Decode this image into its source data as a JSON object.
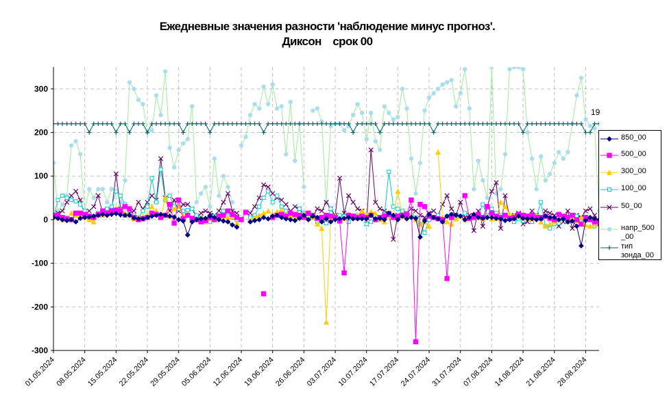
{
  "title_line1": "Ежедневные значения разности 'наблюдение минус прогноз'.",
  "title_line2": "Диксон    срок 00",
  "chart_data": {
    "type": "line",
    "title": "Ежедневные значения разности 'наблюдение минус прогноз'. Диксон срок 00",
    "xlabel": "",
    "ylabel": "",
    "ylim": [
      -300,
      350
    ],
    "yticks": [
      -300,
      -200,
      -100,
      0,
      100,
      200,
      300
    ],
    "x_start": "01.05.2024",
    "x_end": "31.08.2024",
    "xtick_labels": [
      "01.05.2024",
      "08.05.2024",
      "15.05.2024",
      "22.05.2024",
      "29.05.2024",
      "05.06.2024",
      "12.06.2024",
      "19.06.2024",
      "26.06.2024",
      "03.07.2024",
      "10.07.2024",
      "17.07.2024",
      "24.07.2024",
      "31.07.2024",
      "07.08.2024",
      "14.08.2024",
      "21.08.2024",
      "28.08.2024"
    ],
    "grid": true,
    "legend_position": "right",
    "annotation": "19",
    "series": [
      {
        "name": "850_00",
        "color": "#000080",
        "marker": "diamond",
        "values": [
          5,
          3,
          0,
          -2,
          0,
          -5,
          3,
          5,
          6,
          8,
          10,
          12,
          10,
          12,
          14,
          11,
          10,
          10,
          4,
          2,
          2,
          5,
          8,
          10,
          12,
          10,
          8,
          6,
          0,
          -3,
          -35,
          -5,
          0,
          2,
          3,
          8,
          5,
          0,
          -3,
          -5,
          -12,
          -17,
          null,
          null,
          -5,
          -2,
          0,
          5,
          2,
          8,
          10,
          5,
          2,
          0,
          -2,
          3,
          10,
          0,
          8,
          5,
          -5,
          2,
          -5,
          0,
          2,
          3,
          5,
          2,
          2,
          2,
          2,
          10,
          2,
          3,
          0,
          15,
          10,
          0,
          8,
          2,
          5,
          3,
          -40,
          -3,
          12,
          5,
          2,
          -5,
          8,
          12,
          10,
          8,
          0,
          5,
          12,
          5,
          3,
          5,
          5,
          3,
          2,
          -2,
          0,
          2,
          8,
          3,
          2,
          2,
          0,
          2,
          8,
          5,
          5,
          0,
          2,
          -5,
          -3,
          -15,
          -60,
          -2,
          5,
          2,
          0,
          0,
          5,
          2,
          0,
          2
        ]
      },
      {
        "name": "500_00",
        "color": "#ff00ff",
        "marker": "square",
        "values": [
          10,
          10,
          5,
          2,
          0,
          15,
          15,
          12,
          8,
          5,
          12,
          20,
          15,
          20,
          22,
          20,
          30,
          25,
          5,
          0,
          2,
          5,
          15,
          12,
          5,
          10,
          35,
          -8,
          45,
          2,
          10,
          3,
          0,
          -5,
          -2,
          5,
          0,
          8,
          10,
          20,
          12,
          5,
          0,
          17,
          null,
          null,
          null,
          -170,
          null,
          5,
          10,
          12,
          8,
          15,
          12,
          10,
          5,
          15,
          10,
          3,
          5,
          10,
          8,
          5,
          -3,
          -122,
          10,
          8,
          5,
          8,
          5,
          10,
          0,
          5,
          8,
          12,
          5,
          8,
          10,
          12,
          45,
          -280,
          35,
          30,
          8,
          5,
          2,
          0,
          -135,
          5,
          null,
          null,
          55,
          3,
          5,
          12,
          5,
          30,
          15,
          8,
          5,
          10,
          3,
          5,
          12,
          10,
          8,
          10,
          5,
          5,
          8,
          3,
          0,
          12,
          8,
          5,
          10,
          0,
          -10,
          5,
          0,
          -5,
          -5,
          5,
          -8,
          -10,
          -5,
          5,
          5,
          8
        ]
      },
      {
        "name": "300_00",
        "color": "#ffcc00",
        "marker": "triangle",
        "values": [
          5,
          5,
          0,
          5,
          15,
          10,
          8,
          5,
          0,
          -5,
          10,
          12,
          18,
          20,
          25,
          22,
          15,
          10,
          2,
          5,
          8,
          10,
          30,
          20,
          5,
          50,
          8,
          25,
          30,
          10,
          12,
          0,
          2,
          5,
          -5,
          3,
          5,
          10,
          8,
          5,
          8,
          -8,
          null,
          null,
          -2,
          5,
          10,
          15,
          20,
          12,
          18,
          22,
          12,
          10,
          5,
          8,
          12,
          3,
          5,
          -10,
          -20,
          -235,
          2,
          8,
          0,
          3,
          12,
          5,
          8,
          20,
          12,
          18,
          15,
          0,
          -5,
          8,
          10,
          65,
          8,
          5,
          10,
          0,
          -10,
          -5,
          -15,
          null,
          155,
          5,
          -5,
          -10,
          2,
          8,
          0,
          3,
          12,
          5,
          2,
          8,
          2,
          3,
          40,
          30,
          12,
          10,
          8,
          5,
          3,
          2,
          10,
          -5,
          -15,
          -10,
          -5,
          0,
          5,
          2,
          8,
          -2,
          5,
          -12,
          -15,
          -10,
          -5,
          5,
          -5,
          2
        ]
      },
      {
        "name": "100_00",
        "color": "#00cccc",
        "marker": "square_open",
        "values": [
          5,
          45,
          55,
          50,
          45,
          42,
          35,
          20,
          5,
          8,
          15,
          10,
          25,
          30,
          65,
          55,
          35,
          22,
          10,
          5,
          20,
          30,
          95,
          40,
          115,
          45,
          55,
          30,
          25,
          20,
          22,
          25,
          10,
          5,
          0,
          -5,
          8,
          5,
          20,
          15,
          5,
          0,
          null,
          null,
          5,
          10,
          30,
          50,
          65,
          40,
          55,
          30,
          20,
          10,
          5,
          25,
          15,
          5,
          10,
          -5,
          -2,
          -8,
          25,
          5,
          10,
          8,
          -5,
          5,
          10,
          15,
          -10,
          -5,
          2,
          0,
          10,
          110,
          30,
          25,
          20,
          15,
          10,
          5,
          -10,
          -30,
          0,
          5,
          10,
          -5,
          8,
          12,
          5,
          8,
          15,
          3,
          5,
          8,
          35,
          10,
          25,
          15,
          10,
          5,
          8,
          -5,
          2,
          -3,
          5,
          -5,
          8,
          40,
          -15,
          -20,
          -10,
          -8,
          2,
          -5,
          10,
          8,
          -5,
          5,
          2,
          -15,
          -3,
          5
        ]
      },
      {
        "name": "50_00",
        "color": "#660066",
        "marker": "x",
        "values": [
          10,
          15,
          20,
          40,
          55,
          65,
          45,
          10,
          20,
          30,
          55,
          15,
          22,
          20,
          105,
          25,
          10,
          15,
          20,
          40,
          25,
          40,
          55,
          45,
          140,
          50,
          20,
          45,
          20,
          35,
          35,
          25,
          5,
          15,
          20,
          15,
          10,
          20,
          40,
          60,
          20,
          15,
          null,
          null,
          15,
          30,
          50,
          80,
          75,
          60,
          50,
          45,
          35,
          20,
          30,
          25,
          10,
          15,
          8,
          25,
          20,
          40,
          25,
          10,
          95,
          15,
          55,
          40,
          25,
          20,
          -10,
          160,
          40,
          25,
          20,
          15,
          -45,
          10,
          8,
          15,
          25,
          20,
          10,
          5,
          15,
          20,
          10,
          35,
          55,
          25,
          10,
          40,
          5,
          10,
          -25,
          20,
          -15,
          30,
          65,
          85,
          -20,
          55,
          5,
          10,
          15,
          -10,
          -5,
          20,
          10,
          -5,
          20,
          15,
          10,
          -15,
          -5,
          20,
          -20,
          10,
          5,
          20,
          25,
          10,
          -10,
          -22
        ]
      },
      {
        "name": "напр_500_00",
        "color": "#aaddee",
        "marker": "circle",
        "line_color": "#99ee99",
        "values": [
          130,
          20,
          35,
          55,
          170,
          180,
          150,
          20,
          70,
          50,
          70,
          70,
          40,
          70,
          65,
          40,
          90,
          315,
          300,
          275,
          265,
          200,
          205,
          285,
          240,
          340,
          165,
          120,
          160,
          175,
          185,
          260,
          40,
          60,
          75,
          30,
          140,
          55,
          100,
          75,
          40,
          null,
          170,
          190,
          240,
          265,
          255,
          305,
          265,
          310,
          255,
          260,
          150,
          270,
          135,
          220,
          75,
          null,
          250,
          255,
          225,
          40,
          215,
          220,
          220,
          205,
          215,
          240,
          265,
          245,
          185,
          245,
          180,
          160,
          260,
          245,
          230,
          235,
          300,
          255,
          140,
          60,
          130,
          250,
          280,
          290,
          300,
          310,
          315,
          320,
          260,
          290,
          345,
          255,
          70,
          135,
          90,
          50,
          350,
          60,
          70,
          150,
          345,
          350,
          350,
          345,
          200,
          140,
          70,
          145,
          90,
          105,
          130,
          155,
          140,
          155,
          220,
          285,
          325,
          230,
          215,
          210,
          20,
          40,
          30
        ]
      },
      {
        "name": "тип\nзонда_00",
        "color": "#006666",
        "marker": "plus",
        "values": [
          220,
          220,
          220,
          220,
          220,
          220,
          220,
          220,
          200,
          220,
          220,
          220,
          220,
          220,
          200,
          220,
          220,
          200,
          220,
          220,
          220,
          200,
          220,
          220,
          220,
          220,
          220,
          220,
          220,
          200,
          220,
          220,
          220,
          220,
          220,
          200,
          220,
          220,
          220,
          220,
          220,
          220,
          220,
          220,
          220,
          220,
          220,
          200,
          220,
          220,
          220,
          220,
          220,
          220,
          220,
          220,
          220,
          220,
          220,
          220,
          220,
          220,
          220,
          220,
          220,
          220,
          220,
          200,
          220,
          220,
          220,
          220,
          220,
          200,
          220,
          220,
          220,
          220,
          220,
          220,
          220,
          220,
          220,
          220,
          220,
          200,
          220,
          220,
          220,
          220,
          220,
          220,
          220,
          220,
          220,
          220,
          220,
          220,
          220,
          220,
          220,
          220,
          220,
          220,
          220,
          200,
          220,
          220,
          220,
          220,
          220,
          220,
          220,
          220,
          220,
          220,
          220,
          220,
          220,
          200,
          200,
          220,
          220,
          220,
          220,
          220,
          220,
          220,
          220,
          220,
          220
        ]
      }
    ]
  },
  "legend": {
    "items": [
      {
        "label": "850_00"
      },
      {
        "label": "500_00"
      },
      {
        "label": "300_00"
      },
      {
        "label": "100_00"
      },
      {
        "label": "50_00"
      },
      {
        "label": "напр_500\n_00"
      },
      {
        "label": "тип\nзонда_00"
      }
    ]
  }
}
